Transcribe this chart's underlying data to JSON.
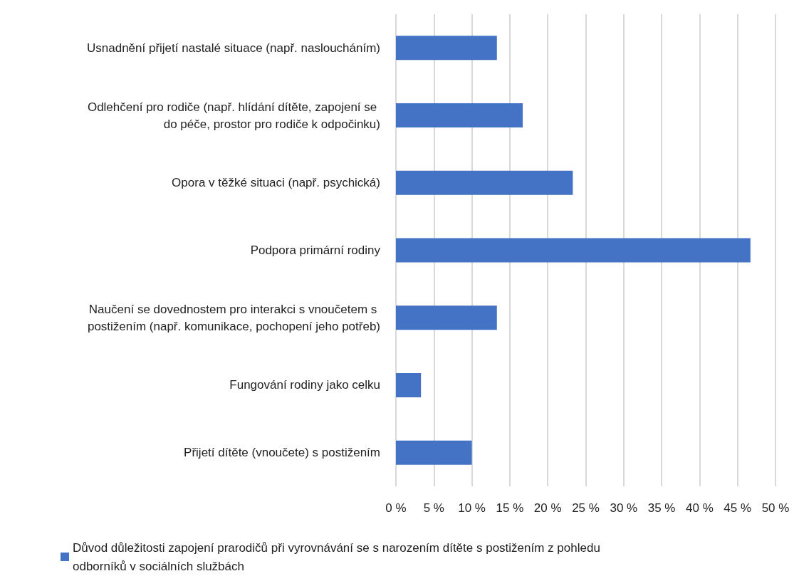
{
  "chart_data": {
    "type": "bar",
    "orientation": "horizontal",
    "categories": [
      "Usnadnění přijetí nastalé situace (např. nasloucháním)",
      "Odlehčení pro rodiče (např. hlídání dítěte, zapojení se do péče, prostor pro rodiče k odpočinku)",
      "Opora v těžké situaci (např. psychická)",
      "Podpora primární rodiny",
      "Naučení se dovednostem pro interakci s vnoučetem s postižením (např. komunikace, pochopení jeho potřeb)",
      "Fungování rodiny jako celku",
      "Přijetí dítěte (vnoučete) s postižením"
    ],
    "series": [
      {
        "name": "Důvod důležitosti zapojení prarodičů při vyrovnávání se s narozením dítěte s postižením z pohledu odborníků v sociálních službách",
        "color": "#4472c4",
        "values": [
          13.3,
          16.7,
          23.3,
          46.7,
          13.3,
          3.3,
          10.0
        ]
      }
    ],
    "xlim": [
      0,
      50
    ],
    "xticks": [
      {
        "value": 0,
        "label": "0 %"
      },
      {
        "value": 5,
        "label": "5 %"
      },
      {
        "value": 10,
        "label": "10 %"
      },
      {
        "value": 15,
        "label": "15 %"
      },
      {
        "value": 20,
        "label": "20 %"
      },
      {
        "value": 25,
        "label": "25 %"
      },
      {
        "value": 30,
        "label": "30 %"
      },
      {
        "value": 35,
        "label": "35 %"
      },
      {
        "value": 40,
        "label": "40 %"
      },
      {
        "value": 45,
        "label": "45 %"
      },
      {
        "value": 50,
        "label": "50 %"
      }
    ],
    "grid": "x",
    "legend": "bottom"
  }
}
